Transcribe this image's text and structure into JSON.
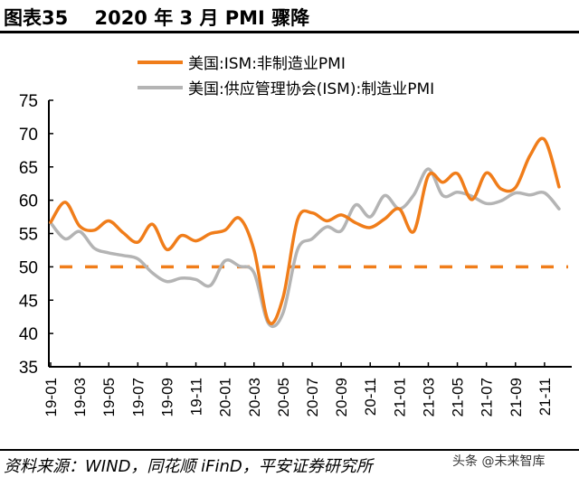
{
  "header": {
    "title": "图表35    2020 年 3 月 PMI 骤降"
  },
  "footer": {
    "source": "资料来源：WIND，同花顺 iFinD，平安证券研究所",
    "watermark": "头条 @未来智库"
  },
  "colors": {
    "non_manufacturing": "#F07D1A",
    "manufacturing": "#B4B4B4",
    "threshold": "#F07D1A",
    "axis": "#000000"
  },
  "chart_data": {
    "type": "line",
    "title": "2020 年 3 月 PMI 骤降",
    "xlabel": "",
    "ylabel": "",
    "ylim": [
      35,
      75
    ],
    "yticks": [
      35,
      40,
      45,
      50,
      55,
      60,
      65,
      70,
      75
    ],
    "x": [
      "19-01",
      "19-02",
      "19-03",
      "19-04",
      "19-05",
      "19-06",
      "19-07",
      "19-08",
      "19-09",
      "19-10",
      "19-11",
      "19-12",
      "20-01",
      "20-02",
      "20-03",
      "20-04",
      "20-05",
      "20-06",
      "20-07",
      "20-08",
      "20-09",
      "20-10",
      "20-11",
      "20-12",
      "21-01",
      "21-02",
      "21-03",
      "21-04",
      "21-05",
      "21-06",
      "21-07",
      "21-08",
      "21-09",
      "21-10",
      "21-11",
      "21-12"
    ],
    "xtick_labels": [
      "19-01",
      "19-03",
      "19-05",
      "19-07",
      "19-09",
      "19-11",
      "20-01",
      "20-03",
      "20-05",
      "20-07",
      "20-09",
      "20-11",
      "21-01",
      "21-03",
      "21-05",
      "21-07",
      "21-09",
      "21-11"
    ],
    "grid": false,
    "legend_position": "top-center",
    "series": [
      {
        "name": "美国:ISM:非制造业PMI",
        "style": "solid",
        "values": [
          56.7,
          59.7,
          56.1,
          55.5,
          56.9,
          55.1,
          53.7,
          56.4,
          52.6,
          54.7,
          53.9,
          55.0,
          55.5,
          57.3,
          52.5,
          41.8,
          45.4,
          57.1,
          58.1,
          56.9,
          57.8,
          56.6,
          55.9,
          57.2,
          58.7,
          55.3,
          63.7,
          62.7,
          64.0,
          60.1,
          64.1,
          61.7,
          61.9,
          66.7,
          69.1,
          62.0
        ]
      },
      {
        "name": "美国:供应管理协会(ISM):制造业PMI",
        "style": "solid",
        "values": [
          56.6,
          54.2,
          55.3,
          52.8,
          52.1,
          51.7,
          51.2,
          49.1,
          47.8,
          48.3,
          48.1,
          47.2,
          50.9,
          50.1,
          49.1,
          41.5,
          43.1,
          52.6,
          54.2,
          56.0,
          55.4,
          59.3,
          57.5,
          60.7,
          58.7,
          60.8,
          64.7,
          60.7,
          61.2,
          60.6,
          59.5,
          59.9,
          61.1,
          60.8,
          61.1,
          58.7
        ]
      }
    ],
    "reference_lines": [
      {
        "name": "50 threshold",
        "value": 50,
        "style": "dashed"
      }
    ]
  }
}
